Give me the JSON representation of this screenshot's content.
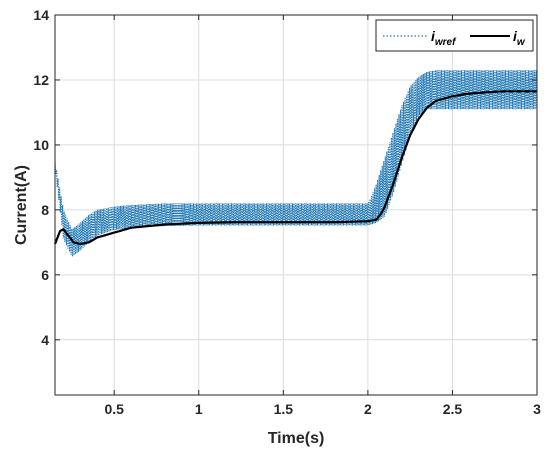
{
  "chart_data": {
    "type": "line",
    "xlabel": "Time(s)",
    "ylabel": "Current(A)",
    "xlim": [
      0.15,
      3
    ],
    "ylim": [
      2.3,
      14
    ],
    "x_ticks": [
      0.5,
      1,
      1.5,
      2,
      2.5,
      3
    ],
    "x_tick_labels": [
      "0.5",
      "1",
      "1.5",
      "2",
      "2.5",
      "3"
    ],
    "y_ticks": [
      4,
      6,
      8,
      10,
      12,
      14
    ],
    "y_tick_labels": [
      "4",
      "6",
      "8",
      "10",
      "12",
      "14"
    ],
    "grid": true,
    "legend_position": "top-right",
    "series": [
      {
        "name": "i_wref",
        "legend_main": "i",
        "legend_sub": "wref",
        "style": "dotted band (oscillating)",
        "color": "#1f77b4",
        "upper": {
          "x": [
            0.15,
            0.2,
            0.25,
            0.3,
            0.35,
            0.4,
            0.45,
            0.5,
            0.6,
            0.8,
            1.0,
            1.5,
            2.0,
            2.02,
            2.05,
            2.1,
            2.15,
            2.2,
            2.25,
            2.3,
            2.35,
            2.4,
            2.5,
            2.7,
            3.0
          ],
          "y": [
            9.5,
            8.0,
            7.4,
            7.6,
            7.85,
            8.0,
            8.05,
            8.1,
            8.15,
            8.2,
            8.2,
            8.2,
            8.2,
            8.4,
            8.8,
            9.6,
            10.4,
            11.2,
            11.8,
            12.1,
            12.25,
            12.3,
            12.3,
            12.3,
            12.3
          ]
        },
        "lower": {
          "x": [
            0.15,
            0.2,
            0.25,
            0.3,
            0.35,
            0.4,
            0.45,
            0.5,
            0.6,
            0.8,
            1.0,
            1.5,
            2.0,
            2.05,
            2.1,
            2.15,
            2.2,
            2.25,
            2.3,
            2.35,
            2.4,
            2.45,
            2.5,
            2.7,
            3.0
          ],
          "y": [
            9.3,
            7.1,
            6.55,
            6.75,
            7.0,
            7.2,
            7.3,
            7.38,
            7.45,
            7.5,
            7.52,
            7.52,
            7.52,
            7.6,
            7.8,
            8.5,
            9.4,
            10.3,
            10.9,
            11.1,
            11.1,
            11.1,
            11.1,
            11.1,
            11.1
          ]
        }
      },
      {
        "name": "i_w",
        "legend_main": "i",
        "legend_sub": "w",
        "style": "solid",
        "color": "#000000",
        "x": [
          0.15,
          0.18,
          0.2,
          0.23,
          0.26,
          0.3,
          0.35,
          0.4,
          0.5,
          0.6,
          0.8,
          1.0,
          1.2,
          1.5,
          1.8,
          2.0,
          2.05,
          2.08,
          2.1,
          2.15,
          2.2,
          2.25,
          2.3,
          2.35,
          2.4,
          2.5,
          2.6,
          2.7,
          2.8,
          3.0
        ],
        "y": [
          6.95,
          7.35,
          7.4,
          7.2,
          7.0,
          6.95,
          7.0,
          7.15,
          7.3,
          7.45,
          7.55,
          7.6,
          7.62,
          7.62,
          7.62,
          7.65,
          7.7,
          7.9,
          8.1,
          8.8,
          9.6,
          10.3,
          10.8,
          11.15,
          11.35,
          11.5,
          11.58,
          11.62,
          11.65,
          11.65
        ]
      }
    ]
  }
}
